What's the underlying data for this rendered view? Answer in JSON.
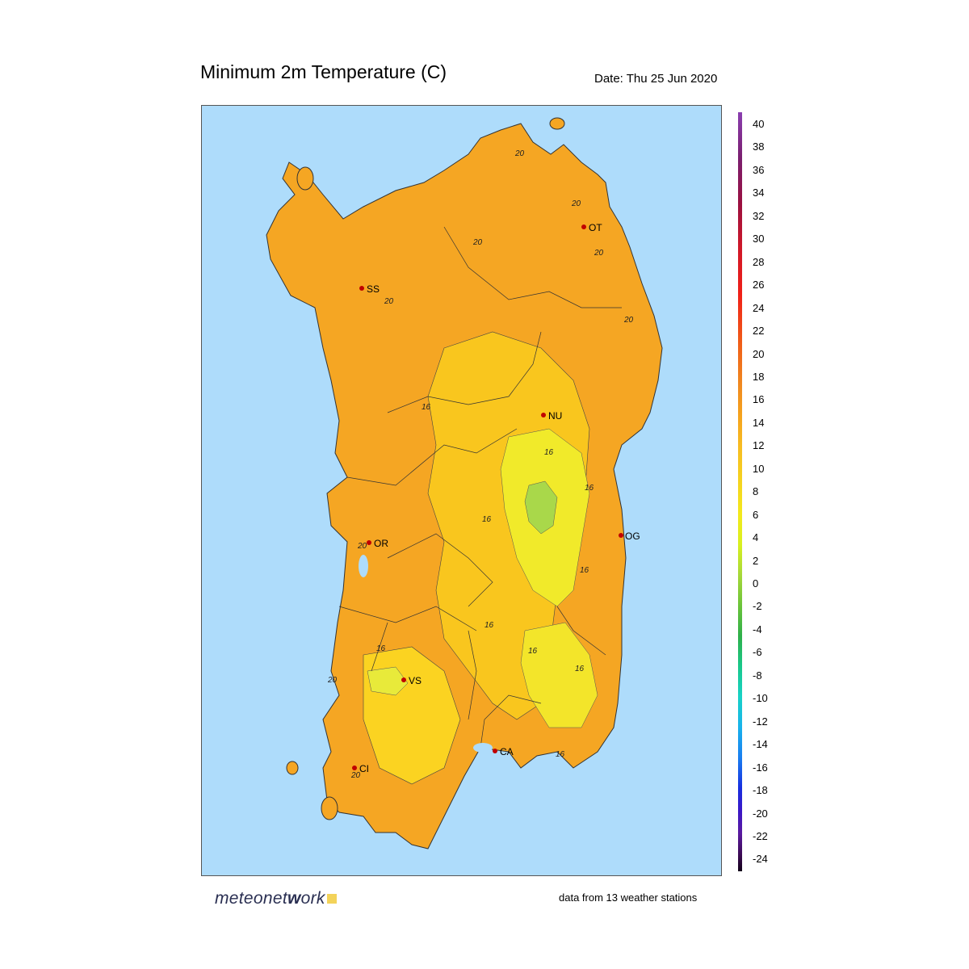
{
  "header": {
    "title": "Minimum 2m Temperature (C)",
    "date": "Date: Thu 25 Jun 2020"
  },
  "colorbar": {
    "labels": [
      "40",
      "38",
      "36",
      "34",
      "32",
      "30",
      "28",
      "26",
      "24",
      "22",
      "20",
      "18",
      "16",
      "14",
      "12",
      "10",
      "8",
      "6",
      "4",
      "2",
      "0",
      "-2",
      "-4",
      "-6",
      "-8",
      "-10",
      "-12",
      "-14",
      "-16",
      "-18",
      "-20",
      "-22",
      "-24"
    ]
  },
  "stations": [
    {
      "code": "OT"
    },
    {
      "code": "SS"
    },
    {
      "code": "NU"
    },
    {
      "code": "OG"
    },
    {
      "code": "OR"
    },
    {
      "code": "VS"
    },
    {
      "code": "CA"
    },
    {
      "code": "CI"
    }
  ],
  "contour_labels": [
    "20",
    "20",
    "20",
    "20",
    "20",
    "20",
    "16",
    "16",
    "16",
    "16",
    "16",
    "16",
    "16",
    "16",
    "16",
    "16",
    "20",
    "20",
    "20"
  ],
  "colors": {
    "sea": "#aedcfb",
    "warm": "#f5a623",
    "mild": "#f9c61e",
    "cool": "#f1ea2a",
    "cold": "#a9d84a",
    "station_dot": "#c00000"
  },
  "footer": {
    "logo_light": "meteo",
    "logo_mid": "net",
    "logo_strong": "w",
    "logo_end": "ork",
    "note": "data from 13 weather stations"
  }
}
